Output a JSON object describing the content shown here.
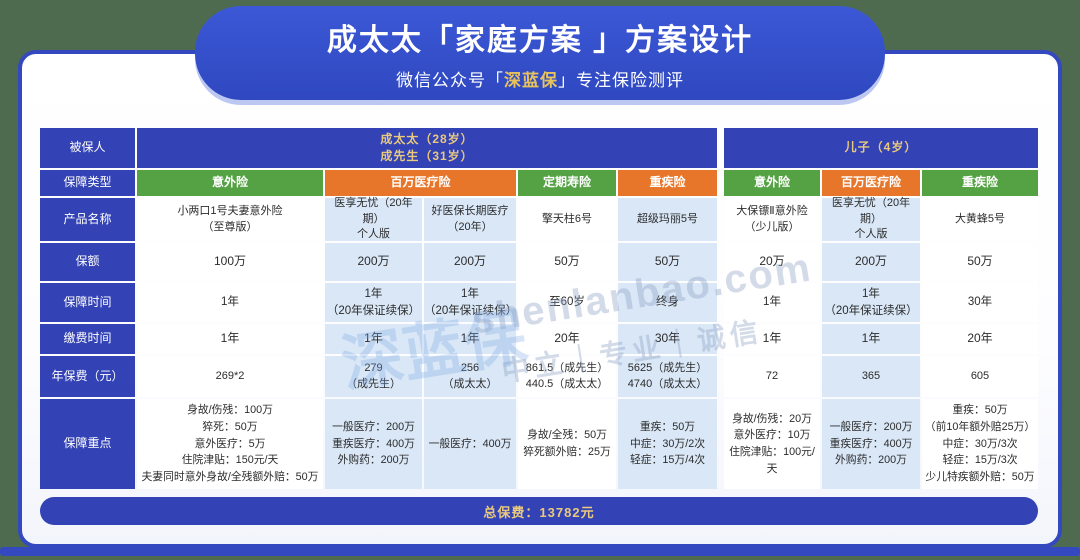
{
  "colors": {
    "background_green": "#4e6b4f",
    "banner_blue": "#3350c9",
    "header_blue": "#3342b5",
    "type_green": "#55a244",
    "type_orange": "#e7762b",
    "tint_blue": "#d9e7f7",
    "gold_text": "#e9c97e",
    "brand_gold": "#e8c35c"
  },
  "banner": {
    "title": "成太太「家庭方案 」方案设计",
    "subtitle_prefix": "微信公众号「",
    "brand": "深蓝保",
    "subtitle_suffix": "」专注保险测评"
  },
  "watermark": {
    "logo": "深蓝保",
    "site": "shenlanbao.com",
    "slogan": "中立｜专业｜诚信"
  },
  "table": {
    "row_labels": [
      "被保人",
      "保障类型",
      "产品名称",
      "保额",
      "保障时间",
      "缴费时间",
      "年保费（元）",
      "保障重点"
    ],
    "insured": {
      "adult": "成太太（28岁）\n成先生（31岁）",
      "child": "儿子（4岁）"
    },
    "types": [
      {
        "label": "意外险",
        "color": "green"
      },
      {
        "label": "百万医疗险",
        "color": "orange"
      },
      {
        "label": "定期寿险",
        "color": "green"
      },
      {
        "label": "重疾险",
        "color": "orange"
      },
      {
        "label": "意外险",
        "color": "green"
      },
      {
        "label": "百万医疗险",
        "color": "orange"
      },
      {
        "label": "重疾险",
        "color": "green"
      }
    ],
    "products": [
      {
        "name": "小两口1号夫妻意外险\n（至尊版）",
        "amount": "100万",
        "term": "1年",
        "pay": "1年",
        "premium": "269*2",
        "highlights": "身故/伤残：100万\n猝死：50万\n意外医疗：5万\n住院津贴：150元/天\n夫妻同时意外身故/全残额外赔：50万"
      },
      {
        "name": "医享无忧（20年期）\n个人版",
        "amount": "200万",
        "term": "1年\n（20年保证续保）",
        "pay": "1年",
        "premium": "279\n（成先生）",
        "highlights": "一般医疗：200万\n重疾医疗：400万\n外购药：200万"
      },
      {
        "name": "好医保长期医疗\n（20年）",
        "amount": "200万",
        "term": "1年\n（20年保证续保）",
        "pay": "1年",
        "premium": "256\n（成太太）",
        "highlights": "一般医疗：400万"
      },
      {
        "name": "擎天柱6号",
        "amount": "50万",
        "term": "至60岁",
        "pay": "20年",
        "premium": "861.5（成先生）\n440.5（成太太）",
        "highlights": "身故/全残：50万\n猝死额外赔：25万"
      },
      {
        "name": "超级玛丽5号",
        "amount": "50万",
        "term": "终身",
        "pay": "30年",
        "premium": "5625（成先生）\n4740（成太太）",
        "highlights": "重疾：50万\n中症：30万/2次\n轻症：15万/4次"
      },
      {
        "name": "大保镖Ⅱ意外险\n（少儿版）",
        "amount": "20万",
        "term": "1年",
        "pay": "1年",
        "premium": "72",
        "highlights": "身故/伤残：20万\n意外医疗：10万\n住院津贴：100元/天"
      },
      {
        "name": "医享无忧（20年期）\n个人版",
        "amount": "200万",
        "term": "1年\n（20年保证续保）",
        "pay": "1年",
        "premium": "365",
        "highlights": "一般医疗：200万\n重疾医疗：400万\n外购药：200万"
      },
      {
        "name": "大黄蜂5号",
        "amount": "50万",
        "term": "30年",
        "pay": "20年",
        "premium": "605",
        "highlights": "重疾：50万\n（前10年额外赔25万）\n中症：30万/3次\n轻症：15万/3次\n少儿特疾额外赔：50万"
      }
    ]
  },
  "total": {
    "label": "总保费：13782元"
  }
}
